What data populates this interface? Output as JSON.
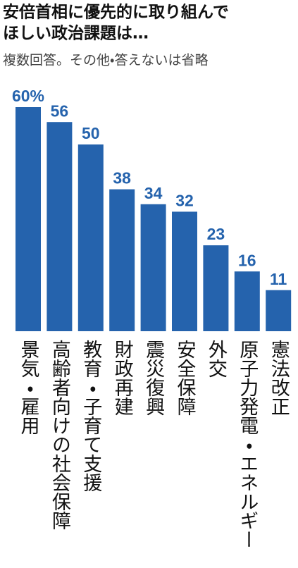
{
  "chart_data": {
    "type": "bar",
    "title": [
      "安倍首相に優先的に取り組んで",
      "ほしい政治課題は…"
    ],
    "subtitle": "複数回答。その他・答えないは省略",
    "categories": [
      "景気・雇用",
      "高齢者向けの社会保障",
      "教育・子育て支援",
      "財政再建",
      "震災復興",
      "安全保障",
      "外交",
      "原子力発電・エネルギー",
      "憲法改正"
    ],
    "values": [
      60,
      56,
      50,
      38,
      34,
      32,
      23,
      16,
      11
    ],
    "value_labels": [
      "60%",
      "56",
      "50",
      "38",
      "34",
      "32",
      "23",
      "16",
      "11"
    ],
    "color": "#2563ad"
  }
}
